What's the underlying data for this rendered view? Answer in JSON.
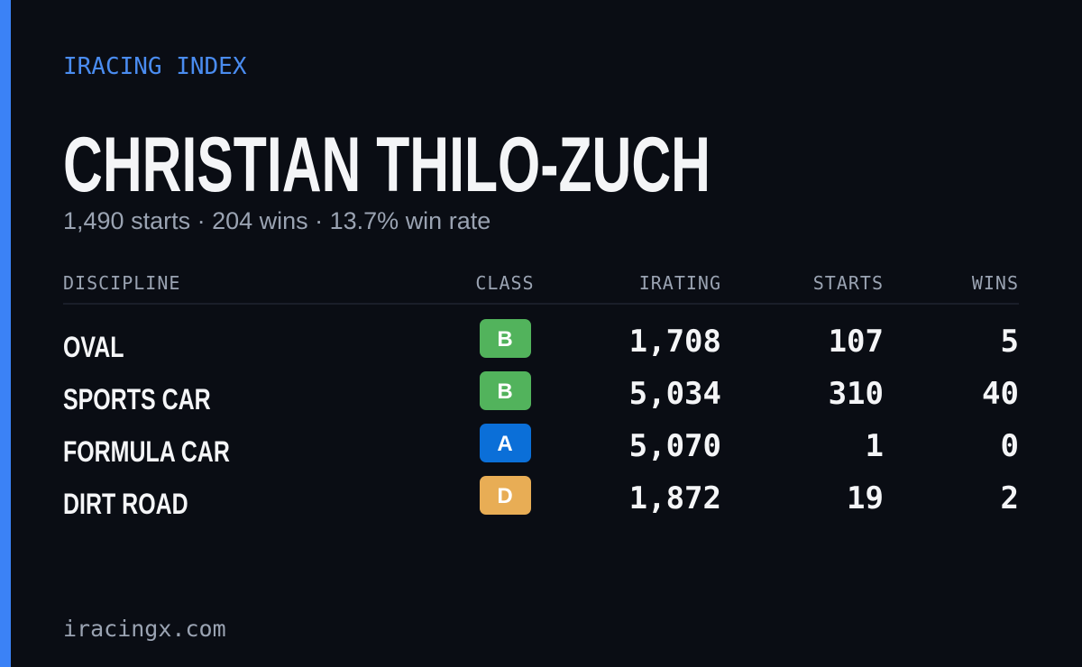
{
  "header": {
    "brand": "IRACING INDEX",
    "name": "CHRISTIAN THILO-ZUCH",
    "summary": "1,490 starts · 204 wins · 13.7% win rate"
  },
  "table": {
    "columns": [
      "DISCIPLINE",
      "CLASS",
      "IRATING",
      "STARTS",
      "WINS"
    ],
    "rows": [
      {
        "discipline": "OVAL",
        "class": "B",
        "class_color": "#52b35c",
        "irating": "1,708",
        "starts": "107",
        "wins": "5"
      },
      {
        "discipline": "SPORTS CAR",
        "class": "B",
        "class_color": "#52b35c",
        "irating": "5,034",
        "starts": "310",
        "wins": "40"
      },
      {
        "discipline": "FORMULA CAR",
        "class": "A",
        "class_color": "#0b6fd8",
        "irating": "5,070",
        "starts": "1",
        "wins": "0"
      },
      {
        "discipline": "DIRT ROAD",
        "class": "D",
        "class_color": "#e8ad55",
        "irating": "1,872",
        "starts": "19",
        "wins": "2"
      }
    ]
  },
  "footer": {
    "site": "iracingx.com"
  }
}
